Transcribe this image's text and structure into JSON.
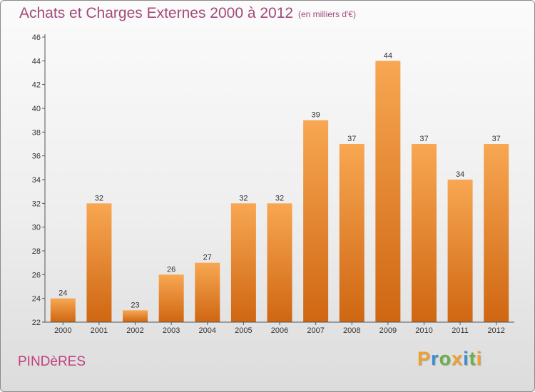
{
  "header": {
    "title": "Achats et Charges Externes 2000 à 2012",
    "subtitle": "(en milliers d'€)"
  },
  "footer": {
    "place": "PINDèRES",
    "brand": "Proxiti",
    "brand_colors": [
      "#f0a030",
      "#3a8fd0",
      "#6ab04c",
      "#f0a030",
      "#3a8fd0",
      "#6ab04c",
      "#f0a030"
    ]
  },
  "chart_data": {
    "type": "bar",
    "categories": [
      "2000",
      "2001",
      "2002",
      "2003",
      "2004",
      "2005",
      "2006",
      "2007",
      "2008",
      "2009",
      "2010",
      "2011",
      "2012"
    ],
    "values": [
      24,
      32,
      23,
      26,
      27,
      32,
      32,
      39,
      37,
      44,
      37,
      34,
      37
    ],
    "ylim": [
      22,
      46
    ],
    "yticks": [
      22,
      24,
      26,
      28,
      30,
      32,
      34,
      36,
      38,
      40,
      42,
      44,
      46
    ],
    "bar_color_top": "#f8a752",
    "bar_color_bottom": "#cf6612",
    "grid": false
  }
}
